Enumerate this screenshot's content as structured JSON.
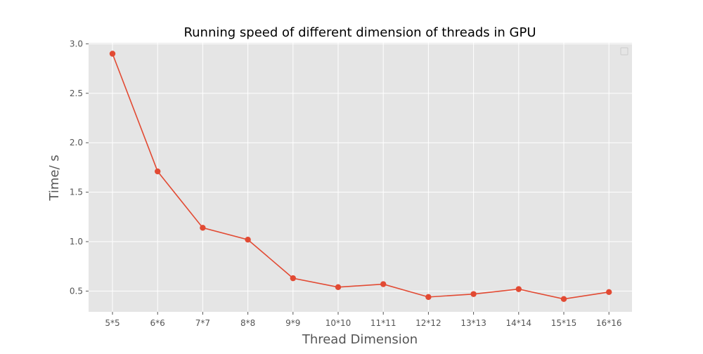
{
  "chart_data": {
    "type": "line",
    "title": "Running speed of different dimension of threads in GPU",
    "xlabel": "Thread Dimension",
    "ylabel": "Time/ s",
    "categories": [
      "5*5",
      "6*6",
      "7*7",
      "8*8",
      "9*9",
      "10*10",
      "11*11",
      "12*12",
      "13*13",
      "14*14",
      "15*15",
      "16*16"
    ],
    "series": [
      {
        "values": [
          2.9,
          1.71,
          1.14,
          1.02,
          0.63,
          0.54,
          0.57,
          0.44,
          0.47,
          0.52,
          0.42,
          0.49
        ]
      }
    ],
    "yticks": [
      "0.5",
      "1.0",
      "1.5",
      "2.0",
      "2.5",
      "3.0"
    ],
    "ylim": [
      0.29,
      3.01
    ],
    "grid": true,
    "legend": "top-right, empty",
    "style": {
      "background": "#e5e5e5",
      "line_color": "#e24a33",
      "grid_color": "#ffffff"
    }
  }
}
